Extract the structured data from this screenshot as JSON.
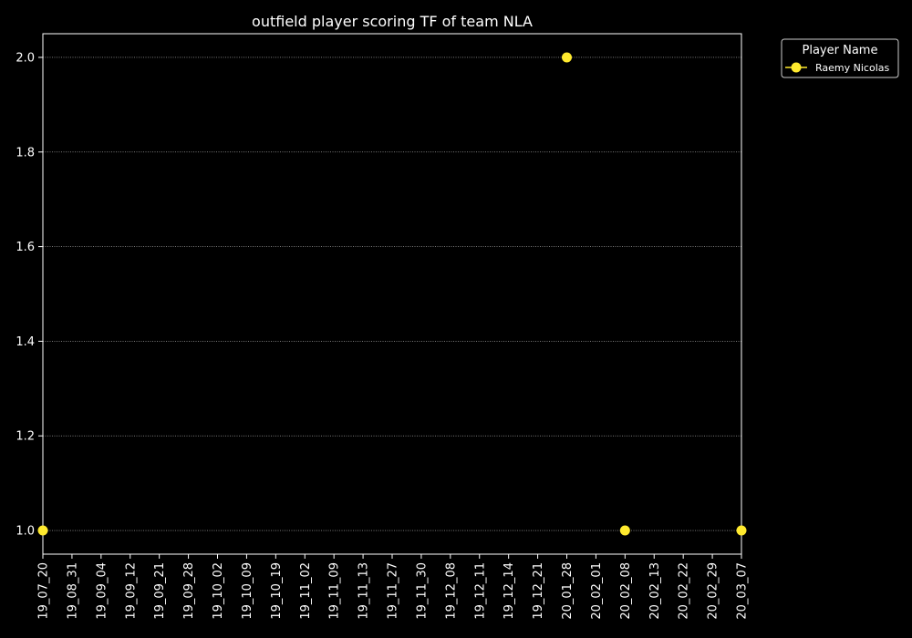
{
  "chart_data": {
    "type": "line",
    "title": "outfield player scoring TF of team NLA",
    "xlabel": "",
    "ylabel": "",
    "categories": [
      "19_07_20",
      "19_08_31",
      "19_09_04",
      "19_09_12",
      "19_09_21",
      "19_09_28",
      "19_10_02",
      "19_10_09",
      "19_10_19",
      "19_11_02",
      "19_11_09",
      "19_11_13",
      "19_11_27",
      "19_11_30",
      "19_12_08",
      "19_12_11",
      "19_12_14",
      "19_12_21",
      "20_01_28",
      "20_02_01",
      "20_02_08",
      "20_02_13",
      "20_02_22",
      "20_02_29",
      "20_03_07"
    ],
    "series": [
      {
        "name": "Raemy Nicolas",
        "color": "#ffea2e",
        "line_style": "none",
        "marker": "circle",
        "points": [
          {
            "x": "19_07_20",
            "y": 1
          },
          {
            "x": "20_01_28",
            "y": 2
          },
          {
            "x": "20_02_08",
            "y": 1
          },
          {
            "x": "20_03_07",
            "y": 1
          }
        ]
      }
    ],
    "ylim": [
      0.95,
      2.05
    ],
    "yticks": [
      "1.0",
      "1.2",
      "1.4",
      "1.6",
      "1.8",
      "2.0"
    ],
    "grid": "y-dotted",
    "legend": {
      "title": "Player Name",
      "placement": "outside-top-right"
    },
    "colors": {
      "background": "#000000",
      "foreground": "#ffffff",
      "grid": "#ffffff"
    }
  }
}
